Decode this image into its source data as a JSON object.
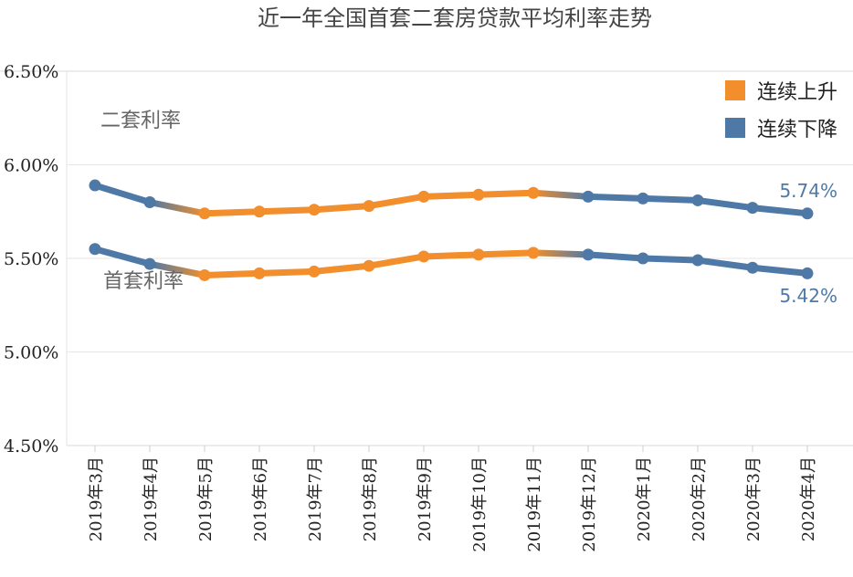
{
  "chart_data": {
    "type": "line",
    "title": "近一年全国首套二套房贷款平均利率走势",
    "xlabel": "",
    "ylabel": "",
    "categories": [
      "2019年3月",
      "2019年4月",
      "2019年5月",
      "2019年6月",
      "2019年7月",
      "2019年8月",
      "2019年9月",
      "2019年10月",
      "2019年11月",
      "2019年12月",
      "2020年1月",
      "2020年2月",
      "2020年3月",
      "2020年4月"
    ],
    "ylim": [
      4.5,
      6.5
    ],
    "yticks": [
      6.5,
      6.0,
      5.5,
      5.0,
      4.5
    ],
    "ytick_labels": [
      "6.50%",
      "6.00%",
      "5.50%",
      "5.00%",
      "4.50%"
    ],
    "series": [
      {
        "name": "二套利率",
        "values": [
          5.89,
          5.8,
          5.74,
          5.75,
          5.76,
          5.78,
          5.83,
          5.84,
          5.85,
          5.83,
          5.82,
          5.81,
          5.77,
          5.74
        ],
        "end_label": "5.74%"
      },
      {
        "name": "首套利率",
        "values": [
          5.55,
          5.47,
          5.41,
          5.42,
          5.43,
          5.46,
          5.51,
          5.52,
          5.53,
          5.52,
          5.5,
          5.49,
          5.45,
          5.42
        ],
        "end_label": "5.42%"
      }
    ],
    "segment_trend": [
      "down",
      "mixed",
      "up",
      "up",
      "up",
      "up",
      "up",
      "up",
      "mixed",
      "down",
      "down",
      "down",
      "down"
    ],
    "legend": [
      {
        "label": "连续上升",
        "color": "#F28E2B",
        "trend": "up"
      },
      {
        "label": "连续下降",
        "color": "#4E79A7",
        "trend": "down"
      }
    ],
    "legend_position": "top-right"
  }
}
